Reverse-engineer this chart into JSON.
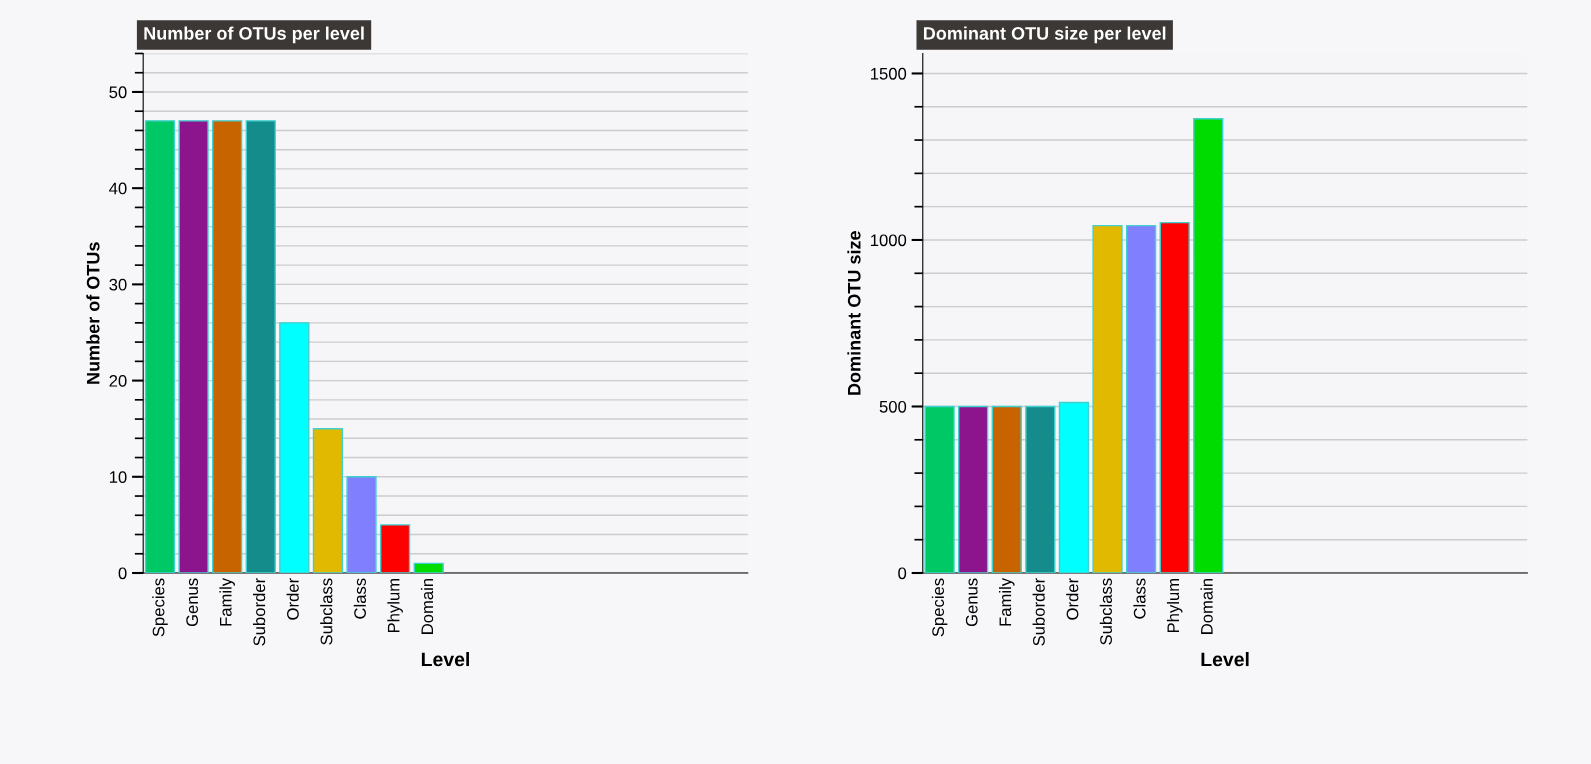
{
  "chart_data": [
    {
      "type": "bar",
      "title": "Number of OTUs per level",
      "xlabel": "Level",
      "ylabel": "Number of OTUs",
      "categories": [
        "Species",
        "Genus",
        "Family",
        "Suborder",
        "Order",
        "Subclass",
        "Class",
        "Phylum",
        "Domain"
      ],
      "values": [
        47,
        47,
        47,
        47,
        26,
        15,
        10,
        5,
        1
      ],
      "colors": [
        "#00c864",
        "#8c148c",
        "#c86400",
        "#148c8c",
        "#00ffff",
        "#e1b900",
        "#8080ff",
        "#ff0000",
        "#00dc00"
      ],
      "ylim": [
        0,
        54
      ],
      "yticks": [
        0,
        10,
        20,
        30,
        40,
        50
      ],
      "grid": "y",
      "legend": false
    },
    {
      "type": "bar",
      "title": "Dominant OTU size per level",
      "xlabel": "Level",
      "ylabel": "Dominant OTU size",
      "categories": [
        "Species",
        "Genus",
        "Family",
        "Suborder",
        "Order",
        "Subclass",
        "Class",
        "Phylum",
        "Domain"
      ],
      "values": [
        500,
        500,
        500,
        500,
        512,
        1043,
        1043,
        1052,
        1364
      ],
      "colors": [
        "#00c864",
        "#8c148c",
        "#c86400",
        "#148c8c",
        "#00ffff",
        "#e1b900",
        "#8080ff",
        "#ff0000",
        "#00dc00"
      ],
      "ylim": [
        0,
        1560
      ],
      "yticks": [
        0,
        500,
        1000,
        1500
      ],
      "grid": "y",
      "legend": false
    }
  ]
}
